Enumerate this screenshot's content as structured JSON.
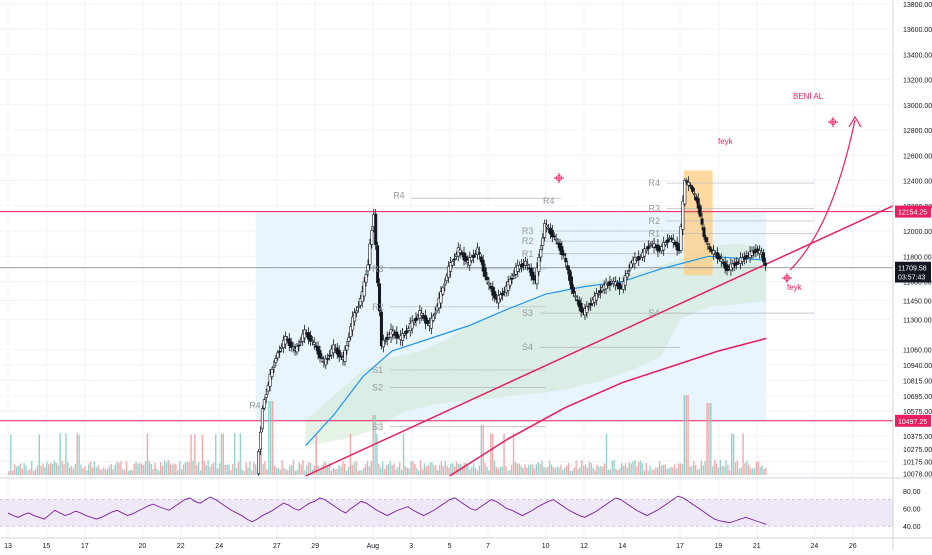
{
  "chart_data": {
    "type": "candlestick",
    "price_axis": {
      "ylim": [
        10060,
        13830
      ],
      "ticks": [
        "13800.00",
        "13600.00",
        "13400.00",
        "13200.00",
        "13000.00",
        "12800.00",
        "12600.00",
        "12400.00",
        "12200.00",
        "12000.00",
        "11800.00",
        "11600.00",
        "11450.00",
        "11300.00",
        "11060.00",
        "10940.00",
        "10815.00",
        "10695.00",
        "10575.00",
        "10375.00",
        "10275.00",
        "10175.00",
        "10078.00"
      ],
      "labels": [
        {
          "text": "12154.25",
          "price": 12154.25,
          "color": "#e91e63"
        },
        {
          "text": "11709.58",
          "price": 11709.58,
          "color": "#131722"
        },
        {
          "text": "03:57:43",
          "price": 11640,
          "color": "#131722"
        },
        {
          "text": "10497.25",
          "price": 10497.25,
          "color": "#e91e63"
        }
      ]
    },
    "time_axis": {
      "ticks": [
        {
          "label": "13",
          "day": 0
        },
        {
          "label": "15",
          "day": 2
        },
        {
          "label": "17",
          "day": 4
        },
        {
          "label": "20",
          "day": 7
        },
        {
          "label": "22",
          "day": 9
        },
        {
          "label": "24",
          "day": 11
        },
        {
          "label": "27",
          "day": 14
        },
        {
          "label": "29",
          "day": 16
        },
        {
          "label": "Aug",
          "day": 19
        },
        {
          "label": "3",
          "day": 21
        },
        {
          "label": "5",
          "day": 23
        },
        {
          "label": "7",
          "day": 25
        },
        {
          "label": "10",
          "day": 28
        },
        {
          "label": "12",
          "day": 30
        },
        {
          "label": "14",
          "day": 32
        },
        {
          "label": "17",
          "day": 35
        },
        {
          "label": "19",
          "day": 37
        },
        {
          "label": "21",
          "day": 39
        },
        {
          "label": "24",
          "day": 42
        },
        {
          "label": "26",
          "day": 44
        }
      ]
    },
    "horizontal_lines": [
      {
        "price": 12154.25,
        "color": "#e91e63"
      },
      {
        "price": 10497.25,
        "color": "#e91e63"
      },
      {
        "price": 11709.58,
        "color": "#787b86"
      }
    ],
    "close_series": [
      {
        "day": 13.0,
        "close": 10080
      },
      {
        "day": 13.3,
        "close": 10600
      },
      {
        "day": 13.7,
        "close": 10850
      },
      {
        "day": 14.0,
        "close": 11000
      },
      {
        "day": 14.5,
        "close": 11150
      },
      {
        "day": 15.0,
        "close": 11050
      },
      {
        "day": 15.5,
        "close": 11200
      },
      {
        "day": 16.0,
        "close": 11100
      },
      {
        "day": 16.5,
        "close": 10950
      },
      {
        "day": 17.0,
        "close": 11080
      },
      {
        "day": 17.5,
        "close": 10980
      },
      {
        "day": 18.0,
        "close": 11300
      },
      {
        "day": 18.5,
        "close": 11500
      },
      {
        "day": 18.8,
        "close": 11750
      },
      {
        "day": 19.1,
        "close": 12150
      },
      {
        "day": 19.3,
        "close": 11600
      },
      {
        "day": 19.5,
        "close": 11100
      },
      {
        "day": 20.0,
        "close": 11200
      },
      {
        "day": 20.5,
        "close": 11150
      },
      {
        "day": 21.0,
        "close": 11250
      },
      {
        "day": 21.5,
        "close": 11350
      },
      {
        "day": 22.0,
        "close": 11250
      },
      {
        "day": 22.5,
        "close": 11450
      },
      {
        "day": 23.0,
        "close": 11700
      },
      {
        "day": 23.5,
        "close": 11850
      },
      {
        "day": 24.0,
        "close": 11750
      },
      {
        "day": 24.5,
        "close": 11850
      },
      {
        "day": 25.0,
        "close": 11600
      },
      {
        "day": 25.5,
        "close": 11450
      },
      {
        "day": 26.0,
        "close": 11550
      },
      {
        "day": 26.5,
        "close": 11700
      },
      {
        "day": 27.0,
        "close": 11750
      },
      {
        "day": 27.5,
        "close": 11600
      },
      {
        "day": 28.0,
        "close": 12050
      },
      {
        "day": 28.5,
        "close": 11950
      },
      {
        "day": 29.0,
        "close": 11800
      },
      {
        "day": 29.5,
        "close": 11500
      },
      {
        "day": 30.0,
        "close": 11350
      },
      {
        "day": 30.5,
        "close": 11450
      },
      {
        "day": 31.0,
        "close": 11550
      },
      {
        "day": 31.5,
        "close": 11600
      },
      {
        "day": 32.0,
        "close": 11550
      },
      {
        "day": 32.5,
        "close": 11750
      },
      {
        "day": 33.0,
        "close": 11800
      },
      {
        "day": 33.5,
        "close": 11900
      },
      {
        "day": 34.0,
        "close": 11850
      },
      {
        "day": 34.5,
        "close": 11950
      },
      {
        "day": 35.0,
        "close": 11850
      },
      {
        "day": 35.3,
        "close": 12400
      },
      {
        "day": 35.6,
        "close": 12350
      },
      {
        "day": 36.0,
        "close": 12200
      },
      {
        "day": 36.3,
        "close": 11950
      },
      {
        "day": 36.6,
        "close": 11850
      },
      {
        "day": 37.0,
        "close": 11800
      },
      {
        "day": 37.5,
        "close": 11700
      },
      {
        "day": 38.0,
        "close": 11750
      },
      {
        "day": 38.5,
        "close": 11800
      },
      {
        "day": 39.0,
        "close": 11850
      },
      {
        "day": 39.3,
        "close": 11820
      },
      {
        "day": 39.5,
        "close": 11710
      }
    ],
    "pivot_labels": [
      {
        "text": "R4",
        "price": 12280,
        "day": 21.0
      },
      {
        "text": "R4",
        "price": 12240,
        "day": 28.8
      },
      {
        "text": "R3",
        "price": 11700,
        "day": 19.9
      },
      {
        "text": "R3",
        "price": 12000,
        "day": 27.7
      },
      {
        "text": "R2",
        "price": 11920,
        "day": 27.7
      },
      {
        "text": "R1",
        "price": 11820,
        "day": 27.7
      },
      {
        "text": "R2",
        "price": 11400,
        "day": 19.9
      },
      {
        "text": "S1",
        "price": 10900,
        "day": 19.9
      },
      {
        "text": "S2",
        "price": 10760,
        "day": 19.9
      },
      {
        "text": "S3",
        "price": 10450,
        "day": 19.9
      },
      {
        "text": "S3",
        "price": 11350,
        "day": 27.7
      },
      {
        "text": "S4",
        "price": 11080,
        "day": 27.7
      },
      {
        "text": "R4",
        "price": 10620,
        "day": 13.5
      },
      {
        "text": "R4",
        "price": 12380,
        "day": 34.3
      },
      {
        "text": "R3",
        "price": 12180,
        "day": 34.3
      },
      {
        "text": "R2",
        "price": 12080,
        "day": 34.3
      },
      {
        "text": "R1",
        "price": 11980,
        "day": 34.3
      },
      {
        "text": "S4",
        "price": 11350,
        "day": 34.3
      }
    ],
    "annotations": [
      {
        "text": "BENİ AL",
        "color": "#e91e63"
      },
      {
        "text": "feyk",
        "color": "#e91e63"
      },
      {
        "text": "feyk",
        "color": "#e91e63"
      }
    ],
    "rsi": {
      "ylim": [
        30,
        90
      ],
      "ticks": [
        "80.00",
        "60.00",
        "40.00"
      ],
      "band": [
        40,
        70
      ],
      "values": [
        55,
        52,
        50,
        53,
        55,
        52,
        50,
        48,
        53,
        58,
        55,
        52,
        54,
        57,
        55,
        52,
        50,
        48,
        50,
        53,
        56,
        58,
        55,
        52,
        54,
        57,
        60,
        63,
        65,
        62,
        60,
        58,
        62,
        66,
        70,
        72,
        68,
        66,
        70,
        73,
        70,
        66,
        62,
        58,
        55,
        52,
        48,
        45,
        48,
        52,
        55,
        58,
        62,
        66,
        64,
        60,
        58,
        62,
        66,
        68,
        72,
        70,
        66,
        62,
        58,
        55,
        60,
        64,
        68,
        66,
        62,
        58,
        55,
        52,
        55,
        58,
        60,
        62,
        58,
        55,
        52,
        55,
        58,
        62,
        66,
        70,
        72,
        68,
        64,
        60,
        58,
        62,
        66,
        70,
        68,
        64,
        60,
        58,
        55,
        52,
        55,
        58,
        62,
        65,
        68,
        70,
        66,
        62,
        58,
        55,
        52,
        50,
        53,
        56,
        60,
        64,
        68,
        72,
        70,
        66,
        62,
        58,
        55,
        52,
        55,
        58,
        62,
        66,
        70,
        74,
        72,
        68,
        64,
        60,
        56,
        52,
        48,
        46,
        45,
        44,
        46,
        48,
        50,
        48,
        46,
        44,
        42
      ]
    }
  }
}
